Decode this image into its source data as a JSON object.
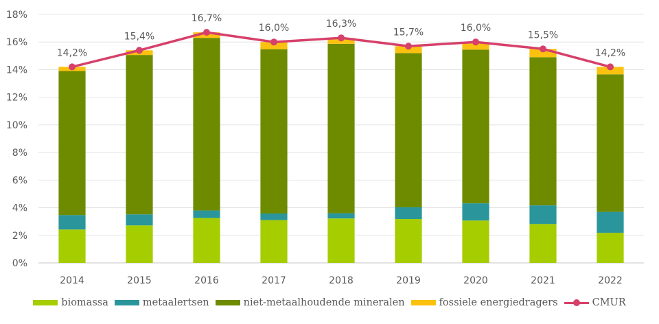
{
  "chart_data": {
    "type": "bar",
    "stacked": true,
    "title": "",
    "xlabel": "",
    "ylabel": "",
    "categories": [
      "2014",
      "2015",
      "2016",
      "2017",
      "2018",
      "2019",
      "2020",
      "2021",
      "2022"
    ],
    "ylim": [
      0,
      18
    ],
    "yticks": [
      0,
      2,
      4,
      6,
      8,
      10,
      12,
      14,
      16,
      18
    ],
    "ytick_labels": [
      "0%",
      "2%",
      "4%",
      "6%",
      "8%",
      "10%",
      "12%",
      "14%",
      "16%",
      "18%"
    ],
    "grid": true,
    "legend_position": "bottom",
    "series": [
      {
        "name": "biomassa",
        "type": "bar",
        "color": "#A5CD00",
        "values": [
          2.42,
          2.72,
          3.25,
          3.1,
          3.22,
          3.18,
          3.07,
          2.82,
          2.18
        ]
      },
      {
        "name": "metaalertsen",
        "type": "bar",
        "color": "#2A969B",
        "values": [
          1.05,
          0.8,
          0.55,
          0.48,
          0.38,
          0.85,
          1.25,
          1.35,
          1.52
        ]
      },
      {
        "name": "niet-metaalhoudende mineralen",
        "type": "bar",
        "color": "#6E8B00",
        "values": [
          10.43,
          11.54,
          12.5,
          11.9,
          12.27,
          11.17,
          11.13,
          10.73,
          9.96
        ]
      },
      {
        "name": "fossiele energiedragers",
        "type": "bar",
        "color": "#FBC10F",
        "values": [
          0.3,
          0.34,
          0.4,
          0.52,
          0.43,
          0.5,
          0.55,
          0.6,
          0.54
        ]
      },
      {
        "name": "CMUR",
        "type": "line",
        "color": "#D6406A",
        "values": [
          14.2,
          15.4,
          16.7,
          16.0,
          16.3,
          15.7,
          16.0,
          15.5,
          14.2
        ],
        "labels": [
          "14,2%",
          "15,4%",
          "16,7%",
          "16,0%",
          "16,3%",
          "15,7%",
          "16,0%",
          "15,5%",
          "14,2%"
        ]
      }
    ]
  },
  "legend": [
    {
      "label": "biomassa",
      "color": "#A5CD00",
      "kind": "bar"
    },
    {
      "label": "metaalertsen",
      "color": "#2A969B",
      "kind": "bar"
    },
    {
      "label": "niet-metaalhoudende mineralen",
      "color": "#6E8B00",
      "kind": "bar"
    },
    {
      "label": "fossiele energiedragers",
      "color": "#FBC10F",
      "kind": "bar"
    },
    {
      "label": "CMUR",
      "color": "#D6406A",
      "kind": "line"
    }
  ]
}
